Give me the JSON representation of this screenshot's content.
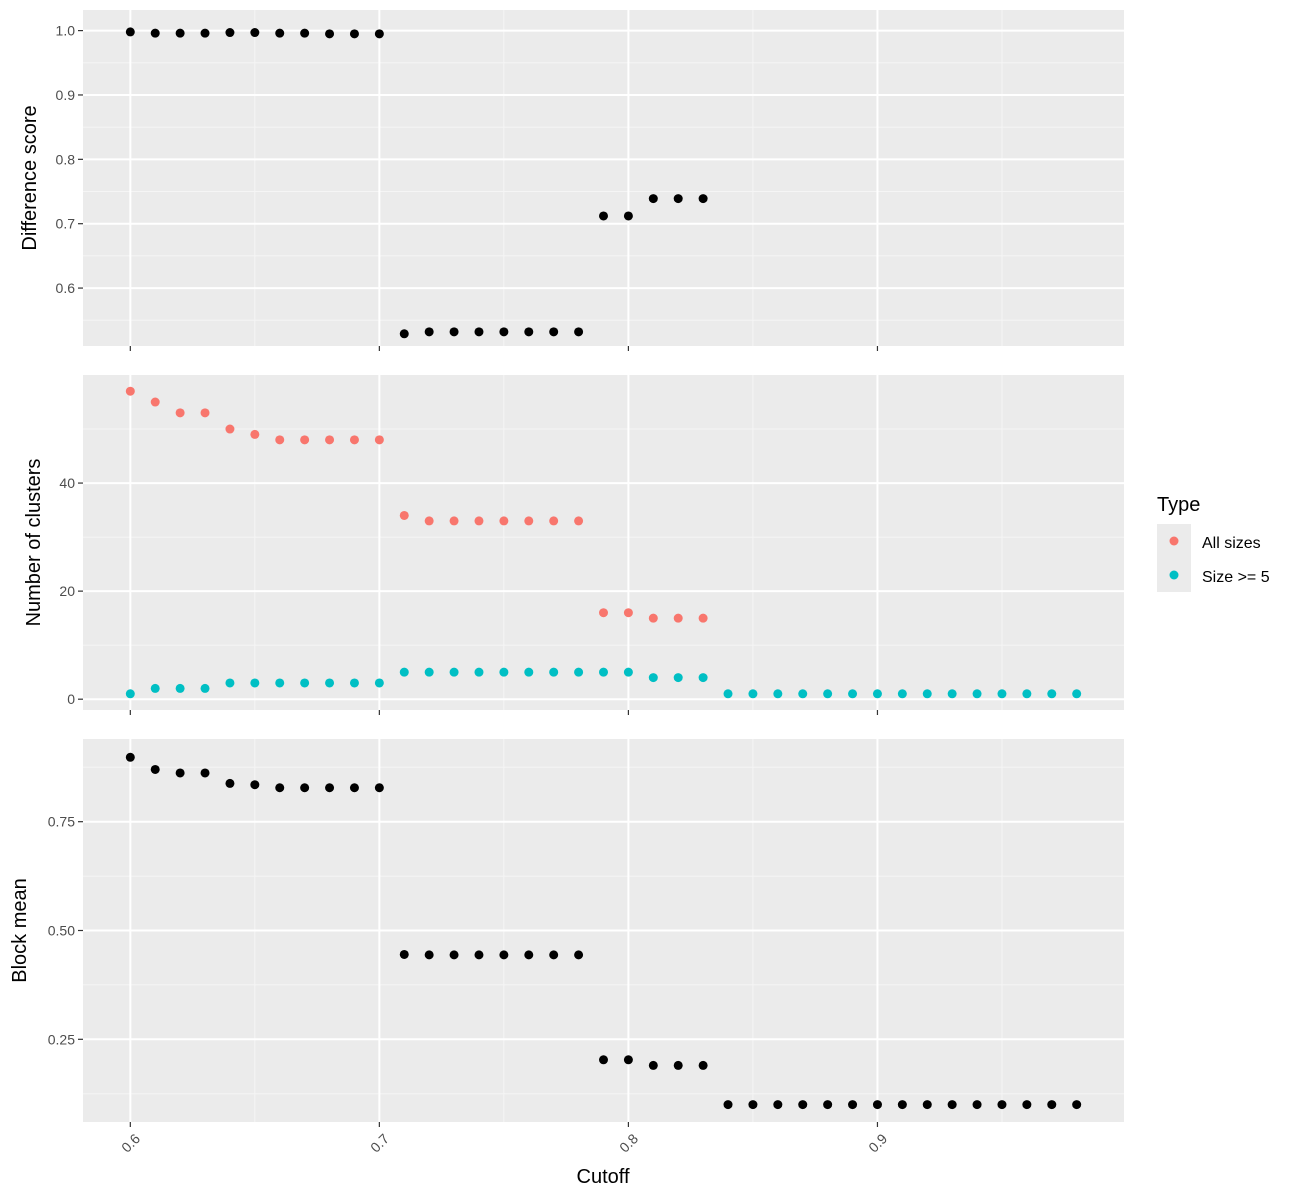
{
  "chart_data": [
    {
      "type": "scatter",
      "title": "",
      "xlabel": "",
      "ylabel": "Difference score",
      "xlim": [
        0.581,
        0.999
      ],
      "ylim": [
        0.51,
        1.032
      ],
      "yticks": [
        0.6,
        0.7,
        0.8,
        0.9,
        1.0
      ],
      "yticklabels": [
        "0.6",
        "0.7",
        "0.8",
        "0.9",
        "1.0"
      ],
      "show_xticklabels": false,
      "grid": true,
      "series": [
        {
          "color": "#000000",
          "x": [
            0.6,
            0.61,
            0.62,
            0.63,
            0.64,
            0.65,
            0.66,
            0.67,
            0.68,
            0.69,
            0.7,
            0.71,
            0.72,
            0.73,
            0.74,
            0.75,
            0.76,
            0.77,
            0.78,
            0.79,
            0.8,
            0.81,
            0.82,
            0.83
          ],
          "y": [
            0.998,
            0.996,
            0.996,
            0.996,
            0.997,
            0.997,
            0.996,
            0.996,
            0.995,
            0.995,
            0.995,
            0.529,
            0.532,
            0.532,
            0.532,
            0.532,
            0.532,
            0.532,
            0.532,
            0.712,
            0.712,
            0.739,
            0.739,
            0.739
          ]
        }
      ]
    },
    {
      "type": "scatter",
      "title": "",
      "xlabel": "",
      "ylabel": "Number of clusters",
      "xlim": [
        0.581,
        0.999
      ],
      "ylim": [
        -2,
        60
      ],
      "yticks": [
        0,
        20,
        40
      ],
      "yticklabels": [
        "0",
        "20",
        "40"
      ],
      "show_xticklabels": false,
      "grid": true,
      "legend": {
        "title": "Type",
        "placement": "right",
        "entries": [
          "All sizes",
          "Size >= 5"
        ]
      },
      "series": [
        {
          "name": "All sizes",
          "color": "#F8766D",
          "x": [
            0.6,
            0.61,
            0.62,
            0.63,
            0.64,
            0.65,
            0.66,
            0.67,
            0.68,
            0.69,
            0.7,
            0.71,
            0.72,
            0.73,
            0.74,
            0.75,
            0.76,
            0.77,
            0.78,
            0.79,
            0.8,
            0.81,
            0.82,
            0.83
          ],
          "y": [
            57,
            55,
            53,
            53,
            50,
            49,
            48,
            48,
            48,
            48,
            48,
            34,
            33,
            33,
            33,
            33,
            33,
            33,
            33,
            16,
            16,
            15,
            15,
            15
          ]
        },
        {
          "name": "Size >= 5",
          "color": "#00BFC4",
          "x": [
            0.6,
            0.61,
            0.62,
            0.63,
            0.64,
            0.65,
            0.66,
            0.67,
            0.68,
            0.69,
            0.7,
            0.71,
            0.72,
            0.73,
            0.74,
            0.75,
            0.76,
            0.77,
            0.78,
            0.79,
            0.8,
            0.81,
            0.82,
            0.83,
            0.84,
            0.85,
            0.86,
            0.87,
            0.88,
            0.89,
            0.9,
            0.91,
            0.92,
            0.93,
            0.94,
            0.95,
            0.96,
            0.97,
            0.98
          ],
          "y": [
            1,
            2,
            2,
            2,
            3,
            3,
            3,
            3,
            3,
            3,
            3,
            5,
            5,
            5,
            5,
            5,
            5,
            5,
            5,
            5,
            5,
            4,
            4,
            4,
            1,
            1,
            1,
            1,
            1,
            1,
            1,
            1,
            1,
            1,
            1,
            1,
            1,
            1,
            1
          ]
        }
      ]
    },
    {
      "type": "scatter",
      "title": "",
      "xlabel": "Cutoff",
      "ylabel": "Block mean",
      "xlim": [
        0.581,
        0.999
      ],
      "ylim": [
        0.06,
        0.94
      ],
      "yticks": [
        0.25,
        0.5,
        0.75
      ],
      "yticklabels": [
        "0.25",
        "0.50",
        "0.75"
      ],
      "xticks": [
        0.6,
        0.7,
        0.8,
        0.9
      ],
      "xticklabels": [
        "0.6",
        "0.7",
        "0.8",
        "0.9"
      ],
      "show_xticklabels": true,
      "grid": true,
      "series": [
        {
          "color": "#000000",
          "x": [
            0.6,
            0.61,
            0.62,
            0.63,
            0.64,
            0.65,
            0.66,
            0.67,
            0.68,
            0.69,
            0.7,
            0.71,
            0.72,
            0.73,
            0.74,
            0.75,
            0.76,
            0.77,
            0.78,
            0.79,
            0.8,
            0.81,
            0.82,
            0.83,
            0.84,
            0.85,
            0.86,
            0.87,
            0.88,
            0.89,
            0.9,
            0.91,
            0.92,
            0.93,
            0.94,
            0.95,
            0.96,
            0.97,
            0.98
          ],
          "y": [
            0.898,
            0.87,
            0.862,
            0.862,
            0.838,
            0.835,
            0.828,
            0.828,
            0.828,
            0.828,
            0.828,
            0.445,
            0.444,
            0.444,
            0.444,
            0.444,
            0.444,
            0.444,
            0.444,
            0.203,
            0.203,
            0.19,
            0.19,
            0.19,
            0.1,
            0.1,
            0.1,
            0.1,
            0.1,
            0.1,
            0.1,
            0.1,
            0.1,
            0.1,
            0.1,
            0.1,
            0.1,
            0.1,
            0.1
          ]
        }
      ]
    }
  ]
}
